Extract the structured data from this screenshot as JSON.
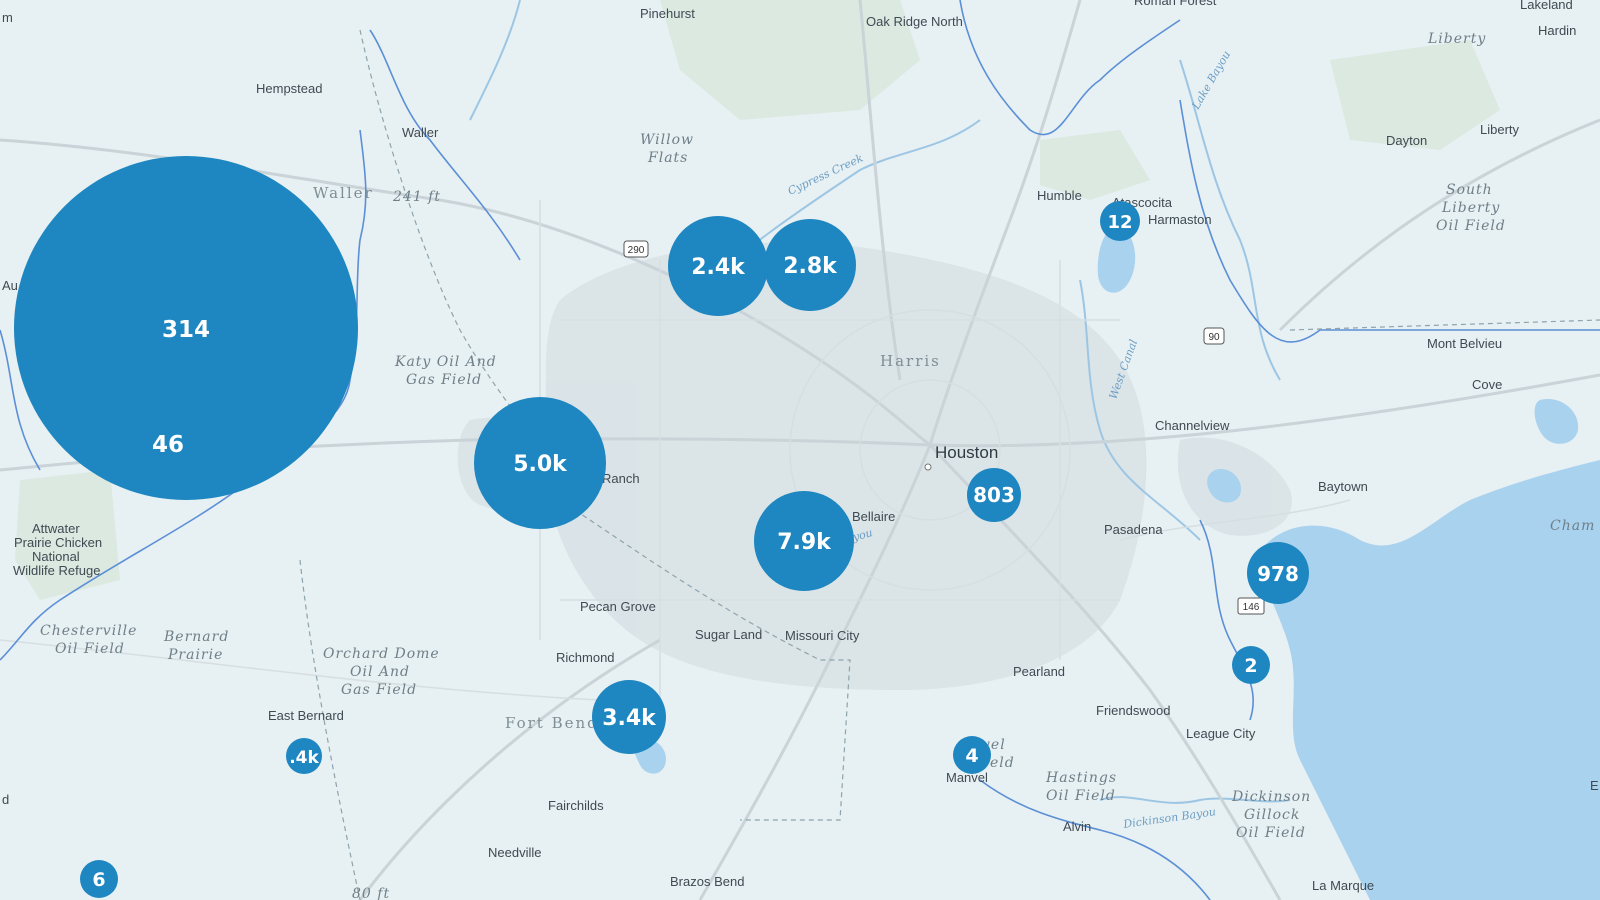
{
  "map": {
    "colors": {
      "land": "#e7f0f3",
      "urban": "#d9e2e6",
      "water": "#a9d2ef",
      "water_line": "#9cc6e4",
      "boundary": "#5b8fd6",
      "road_major": "#c9d3d8",
      "road_minor": "#d6dee2",
      "cluster": "#1e86c0"
    },
    "places": {
      "pinehurst": "Pinehurst",
      "oak_ridge_north": "Oak Ridge North",
      "roman_forest": "Roman Forest",
      "lakeland": "Lakeland",
      "hardin": "Hardin",
      "liberty_region": "Liberty",
      "hempstead": "Hempstead",
      "waller_city": "Waller",
      "waller_county": "Waller",
      "elevation_241": "241 ft",
      "willow": "Willow",
      "flats": "Flats",
      "cypress_creek": "Cypress Creek",
      "humble": "Humble",
      "atascocita": "Atascocita",
      "harmaston": "Harmaston",
      "dayton": "Dayton",
      "liberty": "Liberty",
      "south": "South",
      "liberty2": "Liberty",
      "oil_field": "Oil Field",
      "route_290": "290",
      "route_90": "90",
      "route_146": "146",
      "katy_1": "Katy Oil And",
      "katy_2": "Gas Field",
      "harris": "Harris",
      "mont_belvieu": "Mont Belvieu",
      "cove": "Cove",
      "west_canal": "West Canal",
      "lake_bayou": "Lake Bayou",
      "channelview": "Channelview",
      "houston": "Houston",
      "ranch": "Ranch",
      "bellaire": "Bellaire",
      "bayou": "you",
      "baytown": "Baytown",
      "pasadena": "Pasadena",
      "cham": "Cham",
      "attwater_1": "Attwater",
      "attwater_2": "Prairie Chicken",
      "attwater_3": "National",
      "attwater_4": "Wildlife Refuge",
      "au": "Au",
      "m_edge": "m",
      "d_edge": "d",
      "pecan_grove": "Pecan Grove",
      "sugar_land": "Sugar Land",
      "missouri_city": "Missouri City",
      "chesterville_1": "Chesterville",
      "chesterville_2": "Oil Field",
      "bernard_1": "Bernard",
      "bernard_2": "Prairie",
      "orchard_1": "Orchard Dome",
      "orchard_2": "Oil And",
      "orchard_3": "Gas Field",
      "richmond": "Richmond",
      "pearland": "Pearland",
      "friendswood": "Friendswood",
      "league_city": "League City",
      "east_bernard": "East Bernard",
      "fort_bend": "Fort Bend",
      "manvel": "Manvel",
      "manvel_field_1": "vel",
      "manvel_field_2": "eld",
      "hastings_1": "Hastings",
      "hastings_2": "Oil Field",
      "dickinson_1": "Dickinson",
      "dickinson_2": "Gillock",
      "dickinson_3": "Oil Field",
      "dickinson_bayou": "Dickinson Bayou",
      "fairchilds": "Fairchilds",
      "alvin": "Alvin",
      "needville": "Needville",
      "brazos_bend": "Brazos Bend",
      "la_marque": "La Marque",
      "elevation_80": "80 ft",
      "edge_e": "E"
    },
    "clusters": [
      {
        "id": "cluster-2-4k",
        "label": "2.4k",
        "value": 2400
      },
      {
        "id": "cluster-2-8k",
        "label": "2.8k",
        "value": 2800
      },
      {
        "id": "cluster-12",
        "label": "12",
        "value": 12
      },
      {
        "id": "cluster-314",
        "label": "314",
        "value": 314
      },
      {
        "id": "cluster-46",
        "label": "46",
        "value": 46
      },
      {
        "id": "cluster-5-0k",
        "label": "5.0k",
        "value": 5000
      },
      {
        "id": "cluster-803",
        "label": "803",
        "value": 803
      },
      {
        "id": "cluster-7-9k",
        "label": "7.9k",
        "value": 7900
      },
      {
        "id": "cluster-978",
        "label": "978",
        "value": 978
      },
      {
        "id": "cluster-2",
        "label": "2",
        "value": 2
      },
      {
        "id": "cluster-3-4k",
        "label": "3.4k",
        "value": 3400
      },
      {
        "id": "cluster-4",
        "label": "4",
        "value": 4
      },
      {
        "id": "cluster-1-4k",
        "label": ".4k",
        "value": 1400
      },
      {
        "id": "cluster-6",
        "label": "6",
        "value": 6
      }
    ]
  }
}
